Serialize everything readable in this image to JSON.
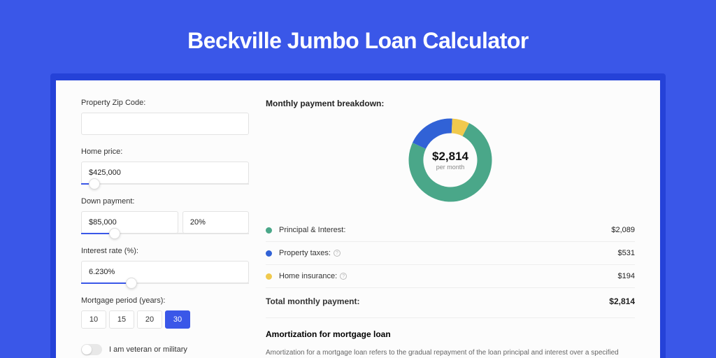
{
  "page": {
    "title": "Beckville Jumbo Loan Calculator",
    "background_color": "#3a57e8",
    "shadow_color": "#2542d8",
    "panel_color": "#fcfcfc"
  },
  "form": {
    "zip": {
      "label": "Property Zip Code:",
      "value": ""
    },
    "home_price": {
      "label": "Home price:",
      "value": "$425,000",
      "slider_pct": 8
    },
    "down_payment": {
      "label": "Down payment:",
      "value": "$85,000",
      "pct_value": "20%",
      "slider_pct": 20
    },
    "interest": {
      "label": "Interest rate (%):",
      "value": "6.230%",
      "slider_pct": 30
    },
    "period": {
      "label": "Mortgage period (years):",
      "options": [
        "10",
        "15",
        "20",
        "30"
      ],
      "selected": "30"
    },
    "veteran": {
      "label": "I am veteran or military",
      "checked": false
    }
  },
  "breakdown": {
    "title": "Monthly payment breakdown:",
    "center_value": "$2,814",
    "center_label": "per month",
    "donut": {
      "type": "donut",
      "stroke_width": 21,
      "background": "#ffffff",
      "slices": [
        {
          "key": "principal_interest",
          "value": 2089,
          "color": "#4aa789"
        },
        {
          "key": "property_taxes",
          "value": 531,
          "color": "#3162d6"
        },
        {
          "key": "home_insurance",
          "value": 194,
          "color": "#f0c94d"
        }
      ]
    },
    "rows": [
      {
        "label": "Principal & Interest:",
        "value": "$2,089",
        "color": "#4aa789",
        "info": false
      },
      {
        "label": "Property taxes:",
        "value": "$531",
        "color": "#3162d6",
        "info": true
      },
      {
        "label": "Home insurance:",
        "value": "$194",
        "color": "#f0c94d",
        "info": true
      }
    ],
    "total": {
      "label": "Total monthly payment:",
      "value": "$2,814"
    }
  },
  "amortization": {
    "title": "Amortization for mortgage loan",
    "text": "Amortization for a mortgage loan refers to the gradual repayment of the loan principal and interest over a specified"
  }
}
